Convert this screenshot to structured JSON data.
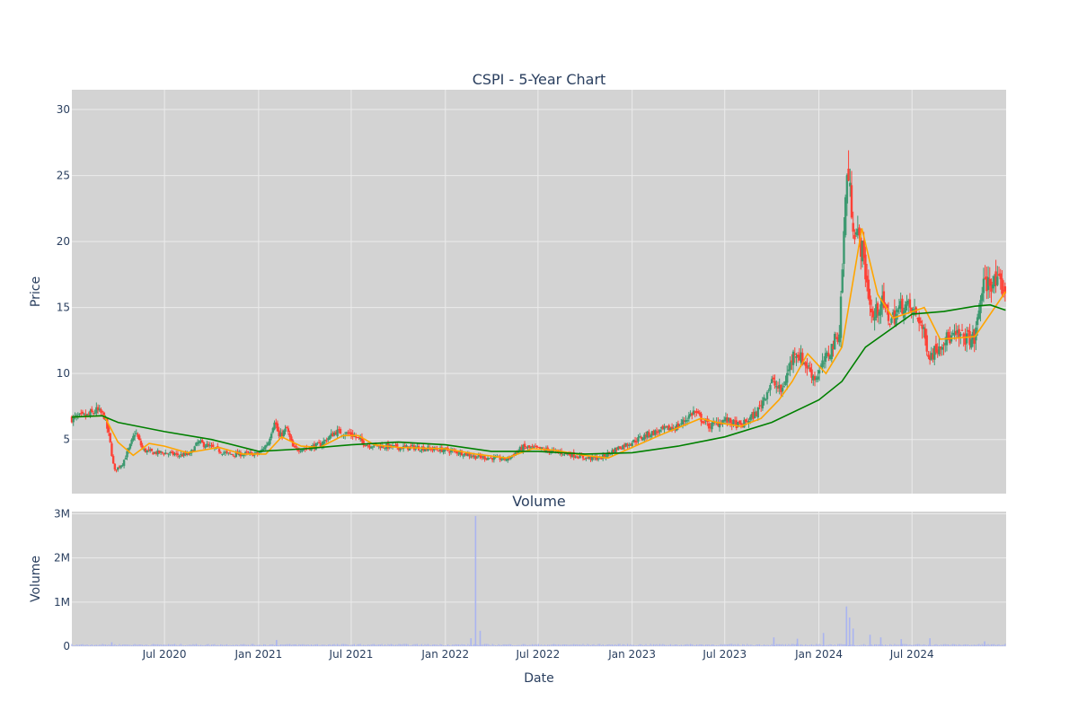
{
  "chart_data": {
    "type": "candlestick",
    "title": "CSPI - 5-Year Chart",
    "colors": {
      "plot_bg": "#d3d3d3",
      "grid": "#ebebeb",
      "up": "#3d9970",
      "down": "#ff4136",
      "ma_short": "#ffa500",
      "ma_long": "#008000",
      "volume": "#aab4f0",
      "text": "#2a3f5f"
    },
    "x_ticks": [
      "2020-07-01",
      "2021-01-01",
      "2021-07-01",
      "2022-01-01",
      "2022-07-01",
      "2023-01-01",
      "2023-07-01",
      "2024-01-01",
      "2024-07-01"
    ],
    "x_tick_labels": [
      "Jul 2020",
      "Jan 2021",
      "Jul 2021",
      "Jan 2022",
      "Jul 2022",
      "Jan 2023",
      "Jul 2023",
      "Jan 2024",
      "Jul 2024"
    ],
    "x_range": [
      "2020-01-02",
      "2025-01-01"
    ],
    "price": {
      "ylabel": "Price",
      "ylim": [
        0.9,
        31.5
      ],
      "y_ticks": [
        5,
        10,
        15,
        20,
        25,
        30
      ],
      "y_tick_labels": [
        "5",
        "10",
        "15",
        "20",
        "25",
        "30"
      ],
      "close_path": [
        [
          "2020-01-02",
          6.6
        ],
        [
          "2020-02-01",
          6.8
        ],
        [
          "2020-02-20",
          7.2
        ],
        [
          "2020-03-05",
          6.8
        ],
        [
          "2020-03-15",
          5.2
        ],
        [
          "2020-03-25",
          2.6
        ],
        [
          "2020-04-10",
          3.2
        ],
        [
          "2020-04-25",
          4.5
        ],
        [
          "2020-05-05",
          5.6
        ],
        [
          "2020-05-20",
          4.2
        ],
        [
          "2020-06-10",
          4.0
        ],
        [
          "2020-07-01",
          4.0
        ],
        [
          "2020-08-01",
          3.8
        ],
        [
          "2020-08-20",
          3.9
        ],
        [
          "2020-09-05",
          4.8
        ],
        [
          "2020-10-01",
          4.4
        ],
        [
          "2020-11-01",
          3.9
        ],
        [
          "2020-12-01",
          3.9
        ],
        [
          "2021-01-01",
          3.9
        ],
        [
          "2021-01-20",
          4.8
        ],
        [
          "2021-02-01",
          6.5
        ],
        [
          "2021-02-10",
          5.2
        ],
        [
          "2021-02-25",
          5.8
        ],
        [
          "2021-03-10",
          4.3
        ],
        [
          "2021-04-01",
          4.3
        ],
        [
          "2021-05-01",
          4.6
        ],
        [
          "2021-06-01",
          5.6
        ],
        [
          "2021-07-01",
          5.4
        ],
        [
          "2021-08-01",
          4.6
        ],
        [
          "2021-09-01",
          4.5
        ],
        [
          "2021-10-01",
          4.4
        ],
        [
          "2021-11-01",
          4.4
        ],
        [
          "2021-12-01",
          4.3
        ],
        [
          "2022-01-01",
          4.2
        ],
        [
          "2022-02-01",
          4.0
        ],
        [
          "2022-03-01",
          3.7
        ],
        [
          "2022-04-01",
          3.6
        ],
        [
          "2022-05-01",
          3.5
        ],
        [
          "2022-06-01",
          4.4
        ],
        [
          "2022-07-01",
          4.3
        ],
        [
          "2022-08-01",
          4.1
        ],
        [
          "2022-09-01",
          3.9
        ],
        [
          "2022-10-01",
          3.6
        ],
        [
          "2022-11-01",
          3.6
        ],
        [
          "2022-12-01",
          4.3
        ],
        [
          "2023-01-01",
          4.8
        ],
        [
          "2023-02-01",
          5.4
        ],
        [
          "2023-03-01",
          5.7
        ],
        [
          "2023-04-01",
          6.0
        ],
        [
          "2023-05-01",
          7.1
        ],
        [
          "2023-06-01",
          6.0
        ],
        [
          "2023-07-01",
          6.5
        ],
        [
          "2023-08-01",
          6.0
        ],
        [
          "2023-09-01",
          7.0
        ],
        [
          "2023-10-01",
          9.4
        ],
        [
          "2023-10-20",
          8.6
        ],
        [
          "2023-11-15",
          11.8
        ],
        [
          "2023-12-10",
          10.5
        ],
        [
          "2023-12-25",
          9.6
        ],
        [
          "2024-01-20",
          11.5
        ],
        [
          "2024-02-10",
          13.2
        ],
        [
          "2024-02-25",
          25.5
        ],
        [
          "2024-03-10",
          21.0
        ],
        [
          "2024-03-25",
          19.5
        ],
        [
          "2024-04-15",
          14.0
        ],
        [
          "2024-05-01",
          15.5
        ],
        [
          "2024-05-20",
          14.0
        ],
        [
          "2024-06-15",
          15.3
        ],
        [
          "2024-07-15",
          14.2
        ],
        [
          "2024-08-05",
          11.3
        ],
        [
          "2024-09-01",
          12.6
        ],
        [
          "2024-10-01",
          12.8
        ],
        [
          "2024-11-01",
          12.6
        ],
        [
          "2024-11-15",
          16.5
        ],
        [
          "2024-12-01",
          17.0
        ],
        [
          "2024-12-31",
          16.4
        ]
      ],
      "ma_short_path": [
        [
          "2020-01-02",
          6.7
        ],
        [
          "2020-03-05",
          6.8
        ],
        [
          "2020-04-01",
          4.8
        ],
        [
          "2020-05-01",
          3.8
        ],
        [
          "2020-06-01",
          4.7
        ],
        [
          "2020-07-01",
          4.5
        ],
        [
          "2020-08-15",
          4.0
        ],
        [
          "2020-09-15",
          4.2
        ],
        [
          "2020-10-15",
          4.4
        ],
        [
          "2020-12-01",
          3.9
        ],
        [
          "2021-01-15",
          3.9
        ],
        [
          "2021-02-15",
          5.2
        ],
        [
          "2021-03-25",
          4.5
        ],
        [
          "2021-05-01",
          4.4
        ],
        [
          "2021-06-15",
          5.3
        ],
        [
          "2021-07-15",
          5.3
        ],
        [
          "2021-08-15",
          4.6
        ],
        [
          "2021-10-01",
          4.4
        ],
        [
          "2022-01-01",
          4.3
        ],
        [
          "2022-03-01",
          3.9
        ],
        [
          "2022-05-01",
          3.6
        ],
        [
          "2022-06-20",
          4.3
        ],
        [
          "2022-08-01",
          4.2
        ],
        [
          "2022-10-01",
          3.8
        ],
        [
          "2022-11-15",
          3.6
        ],
        [
          "2023-01-01",
          4.4
        ],
        [
          "2023-03-01",
          5.4
        ],
        [
          "2023-05-15",
          6.6
        ],
        [
          "2023-06-15",
          6.3
        ],
        [
          "2023-08-01",
          6.0
        ],
        [
          "2023-09-10",
          6.6
        ],
        [
          "2023-10-15",
          8.0
        ],
        [
          "2023-11-10",
          9.4
        ],
        [
          "2023-12-10",
          11.5
        ],
        [
          "2024-01-15",
          10.0
        ],
        [
          "2024-02-15",
          12.0
        ],
        [
          "2024-03-25",
          21.0
        ],
        [
          "2024-04-25",
          16.0
        ],
        [
          "2024-05-25",
          14.2
        ],
        [
          "2024-06-25",
          14.6
        ],
        [
          "2024-07-25",
          15.0
        ],
        [
          "2024-08-25",
          12.6
        ],
        [
          "2024-10-01",
          12.7
        ],
        [
          "2024-11-01",
          12.8
        ],
        [
          "2024-12-31",
          16.2
        ]
      ],
      "ma_long_path": [
        [
          "2020-01-02",
          6.7
        ],
        [
          "2020-03-01",
          6.8
        ],
        [
          "2020-04-01",
          6.3
        ],
        [
          "2020-07-01",
          5.6
        ],
        [
          "2020-10-01",
          5.0
        ],
        [
          "2021-01-01",
          4.1
        ],
        [
          "2021-04-01",
          4.3
        ],
        [
          "2021-07-01",
          4.6
        ],
        [
          "2021-10-01",
          4.8
        ],
        [
          "2022-01-01",
          4.6
        ],
        [
          "2022-04-01",
          4.1
        ],
        [
          "2022-07-01",
          4.1
        ],
        [
          "2022-10-01",
          3.9
        ],
        [
          "2023-01-01",
          4.0
        ],
        [
          "2023-04-01",
          4.5
        ],
        [
          "2023-07-01",
          5.2
        ],
        [
          "2023-10-01",
          6.3
        ],
        [
          "2024-01-01",
          8.0
        ],
        [
          "2024-02-15",
          9.4
        ],
        [
          "2024-04-01",
          12.0
        ],
        [
          "2024-07-01",
          14.5
        ],
        [
          "2024-09-01",
          14.7
        ],
        [
          "2024-11-01",
          15.1
        ],
        [
          "2024-12-01",
          15.2
        ],
        [
          "2024-12-31",
          14.8
        ]
      ]
    },
    "volume": {
      "title": "Volume",
      "ylabel": "Volume",
      "ylim": [
        0,
        3050000
      ],
      "y_ticks": [
        0,
        1000000,
        2000000,
        3000000
      ],
      "y_tick_labels": [
        "0",
        "1M",
        "2M",
        "3M"
      ],
      "baseline": 35000,
      "spikes": [
        [
          "2022-03-01",
          2950000
        ],
        [
          "2022-03-10",
          350000
        ],
        [
          "2022-02-20",
          180000
        ],
        [
          "2024-02-24",
          900000
        ],
        [
          "2024-03-01",
          650000
        ],
        [
          "2024-03-08",
          400000
        ],
        [
          "2024-01-10",
          300000
        ],
        [
          "2024-04-10",
          260000
        ],
        [
          "2024-05-01",
          200000
        ],
        [
          "2023-10-05",
          200000
        ],
        [
          "2023-11-20",
          170000
        ],
        [
          "2024-06-10",
          160000
        ],
        [
          "2024-08-05",
          180000
        ],
        [
          "2024-11-20",
          110000
        ],
        [
          "2021-02-05",
          140000
        ],
        [
          "2020-03-20",
          90000
        ]
      ]
    },
    "xlabel": "Date",
    "legend": "none",
    "grid": true
  }
}
